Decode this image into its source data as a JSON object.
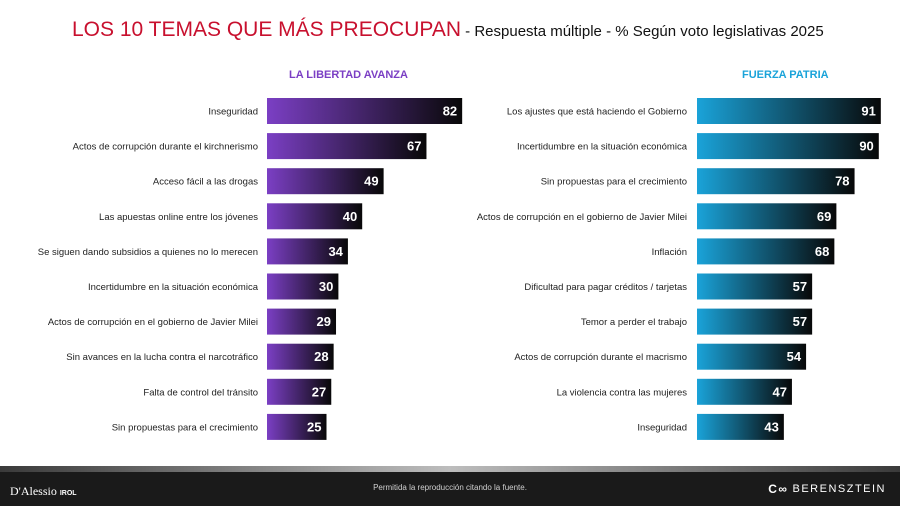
{
  "header": {
    "title": "LOS 10 TEMAS QUE MÁS PREOCUPAN",
    "subtitle": " - Respuesta múltiple - % Según voto legislativas 2025"
  },
  "colors": {
    "title_red": "#c8102e",
    "lla_purple": "#7b3fc4",
    "fp_blue": "#1aa3d9",
    "bar_end": "#080808"
  },
  "chart_data": [
    {
      "type": "bar",
      "orientation": "horizontal",
      "title": "LA LIBERTAD AVANZA",
      "categories": [
        "Inseguridad",
        "Actos de corrupción durante el kirchnerismo",
        "Acceso fácil a las drogas",
        "Las apuestas online entre los jóvenes",
        "Se siguen dando subsidios a quienes no lo merecen",
        "Incertidumbre en la situación económica",
        "Actos de corrupción en el gobierno de Javier Milei",
        "Sin avances en la lucha contra el narcotráfico",
        "Falta de control del tránsito",
        "Sin propuestas para el crecimiento"
      ],
      "values": [
        82,
        67,
        49,
        40,
        34,
        30,
        29,
        28,
        27,
        25
      ],
      "xlim": [
        0,
        100
      ]
    },
    {
      "type": "bar",
      "orientation": "horizontal",
      "title": "FUERZA PATRIA",
      "categories": [
        "Los ajustes que está haciendo el Gobierno",
        "Incertidumbre en la situación económica",
        "Sin propuestas para el crecimiento",
        "Actos de corrupción en el gobierno de Javier Milei",
        "Inflación",
        "Dificultad para pagar créditos / tarjetas",
        "Temor a perder el trabajo",
        "Actos de corrupción durante el macrismo",
        "La violencia contra las mujeres",
        "Inseguridad"
      ],
      "values": [
        91,
        90,
        78,
        69,
        68,
        57,
        57,
        54,
        47,
        43
      ],
      "xlim": [
        0,
        100
      ]
    }
  ],
  "footer": {
    "note": "Permitida la reproducción citando la fuente.",
    "logo_left": "D'Alessio",
    "logo_left_suffix": "IROL",
    "logo_right": "BERENSZTEIN",
    "logo_right_mark": "C∞"
  }
}
